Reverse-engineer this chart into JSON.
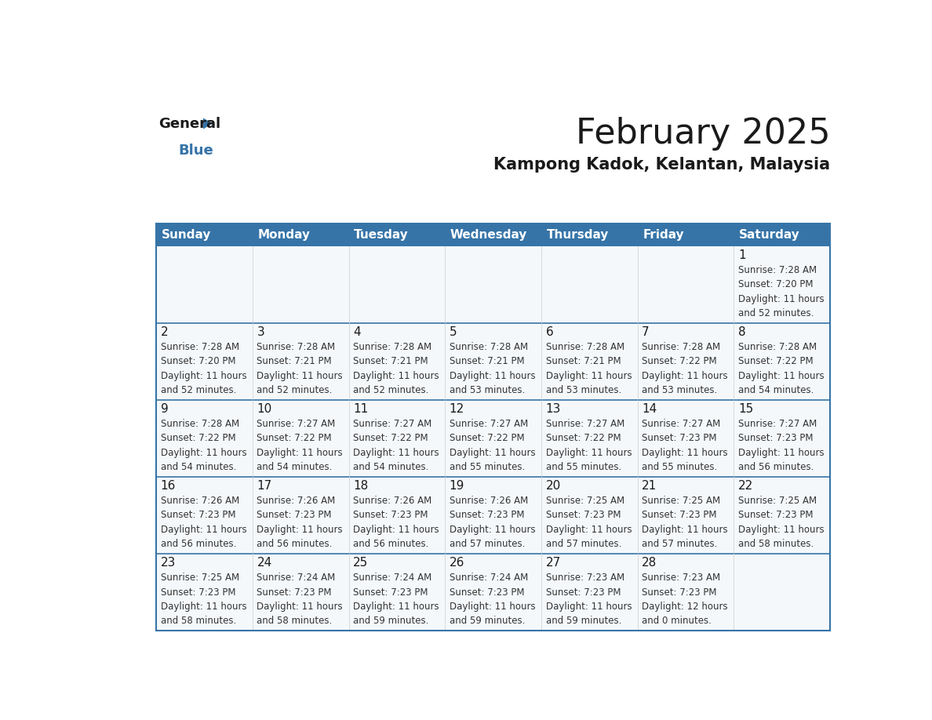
{
  "title": "February 2025",
  "subtitle": "Kampong Kadok, Kelantan, Malaysia",
  "header_color": "#3674a8",
  "header_text_color": "#ffffff",
  "cell_bg_color": "#f5f8fb",
  "border_color": "#3674a8",
  "row_line_color": "#3674a8",
  "day_headers": [
    "Sunday",
    "Monday",
    "Tuesday",
    "Wednesday",
    "Thursday",
    "Friday",
    "Saturday"
  ],
  "title_fontsize": 32,
  "subtitle_fontsize": 15,
  "day_number_fontsize": 11,
  "cell_text_fontsize": 8.5,
  "header_fontsize": 11,
  "calendar": [
    [
      {
        "day": "",
        "lines": []
      },
      {
        "day": "",
        "lines": []
      },
      {
        "day": "",
        "lines": []
      },
      {
        "day": "",
        "lines": []
      },
      {
        "day": "",
        "lines": []
      },
      {
        "day": "",
        "lines": []
      },
      {
        "day": "1",
        "lines": [
          "Sunrise: 7:28 AM",
          "Sunset: 7:20 PM",
          "Daylight: 11 hours",
          "and 52 minutes."
        ]
      }
    ],
    [
      {
        "day": "2",
        "lines": [
          "Sunrise: 7:28 AM",
          "Sunset: 7:20 PM",
          "Daylight: 11 hours",
          "and 52 minutes."
        ]
      },
      {
        "day": "3",
        "lines": [
          "Sunrise: 7:28 AM",
          "Sunset: 7:21 PM",
          "Daylight: 11 hours",
          "and 52 minutes."
        ]
      },
      {
        "day": "4",
        "lines": [
          "Sunrise: 7:28 AM",
          "Sunset: 7:21 PM",
          "Daylight: 11 hours",
          "and 52 minutes."
        ]
      },
      {
        "day": "5",
        "lines": [
          "Sunrise: 7:28 AM",
          "Sunset: 7:21 PM",
          "Daylight: 11 hours",
          "and 53 minutes."
        ]
      },
      {
        "day": "6",
        "lines": [
          "Sunrise: 7:28 AM",
          "Sunset: 7:21 PM",
          "Daylight: 11 hours",
          "and 53 minutes."
        ]
      },
      {
        "day": "7",
        "lines": [
          "Sunrise: 7:28 AM",
          "Sunset: 7:22 PM",
          "Daylight: 11 hours",
          "and 53 minutes."
        ]
      },
      {
        "day": "8",
        "lines": [
          "Sunrise: 7:28 AM",
          "Sunset: 7:22 PM",
          "Daylight: 11 hours",
          "and 54 minutes."
        ]
      }
    ],
    [
      {
        "day": "9",
        "lines": [
          "Sunrise: 7:28 AM",
          "Sunset: 7:22 PM",
          "Daylight: 11 hours",
          "and 54 minutes."
        ]
      },
      {
        "day": "10",
        "lines": [
          "Sunrise: 7:27 AM",
          "Sunset: 7:22 PM",
          "Daylight: 11 hours",
          "and 54 minutes."
        ]
      },
      {
        "day": "11",
        "lines": [
          "Sunrise: 7:27 AM",
          "Sunset: 7:22 PM",
          "Daylight: 11 hours",
          "and 54 minutes."
        ]
      },
      {
        "day": "12",
        "lines": [
          "Sunrise: 7:27 AM",
          "Sunset: 7:22 PM",
          "Daylight: 11 hours",
          "and 55 minutes."
        ]
      },
      {
        "day": "13",
        "lines": [
          "Sunrise: 7:27 AM",
          "Sunset: 7:22 PM",
          "Daylight: 11 hours",
          "and 55 minutes."
        ]
      },
      {
        "day": "14",
        "lines": [
          "Sunrise: 7:27 AM",
          "Sunset: 7:23 PM",
          "Daylight: 11 hours",
          "and 55 minutes."
        ]
      },
      {
        "day": "15",
        "lines": [
          "Sunrise: 7:27 AM",
          "Sunset: 7:23 PM",
          "Daylight: 11 hours",
          "and 56 minutes."
        ]
      }
    ],
    [
      {
        "day": "16",
        "lines": [
          "Sunrise: 7:26 AM",
          "Sunset: 7:23 PM",
          "Daylight: 11 hours",
          "and 56 minutes."
        ]
      },
      {
        "day": "17",
        "lines": [
          "Sunrise: 7:26 AM",
          "Sunset: 7:23 PM",
          "Daylight: 11 hours",
          "and 56 minutes."
        ]
      },
      {
        "day": "18",
        "lines": [
          "Sunrise: 7:26 AM",
          "Sunset: 7:23 PM",
          "Daylight: 11 hours",
          "and 56 minutes."
        ]
      },
      {
        "day": "19",
        "lines": [
          "Sunrise: 7:26 AM",
          "Sunset: 7:23 PM",
          "Daylight: 11 hours",
          "and 57 minutes."
        ]
      },
      {
        "day": "20",
        "lines": [
          "Sunrise: 7:25 AM",
          "Sunset: 7:23 PM",
          "Daylight: 11 hours",
          "and 57 minutes."
        ]
      },
      {
        "day": "21",
        "lines": [
          "Sunrise: 7:25 AM",
          "Sunset: 7:23 PM",
          "Daylight: 11 hours",
          "and 57 minutes."
        ]
      },
      {
        "day": "22",
        "lines": [
          "Sunrise: 7:25 AM",
          "Sunset: 7:23 PM",
          "Daylight: 11 hours",
          "and 58 minutes."
        ]
      }
    ],
    [
      {
        "day": "23",
        "lines": [
          "Sunrise: 7:25 AM",
          "Sunset: 7:23 PM",
          "Daylight: 11 hours",
          "and 58 minutes."
        ]
      },
      {
        "day": "24",
        "lines": [
          "Sunrise: 7:24 AM",
          "Sunset: 7:23 PM",
          "Daylight: 11 hours",
          "and 58 minutes."
        ]
      },
      {
        "day": "25",
        "lines": [
          "Sunrise: 7:24 AM",
          "Sunset: 7:23 PM",
          "Daylight: 11 hours",
          "and 59 minutes."
        ]
      },
      {
        "day": "26",
        "lines": [
          "Sunrise: 7:24 AM",
          "Sunset: 7:23 PM",
          "Daylight: 11 hours",
          "and 59 minutes."
        ]
      },
      {
        "day": "27",
        "lines": [
          "Sunrise: 7:23 AM",
          "Sunset: 7:23 PM",
          "Daylight: 11 hours",
          "and 59 minutes."
        ]
      },
      {
        "day": "28",
        "lines": [
          "Sunrise: 7:23 AM",
          "Sunset: 7:23 PM",
          "Daylight: 12 hours",
          "and 0 minutes."
        ]
      },
      {
        "day": "",
        "lines": []
      }
    ]
  ]
}
